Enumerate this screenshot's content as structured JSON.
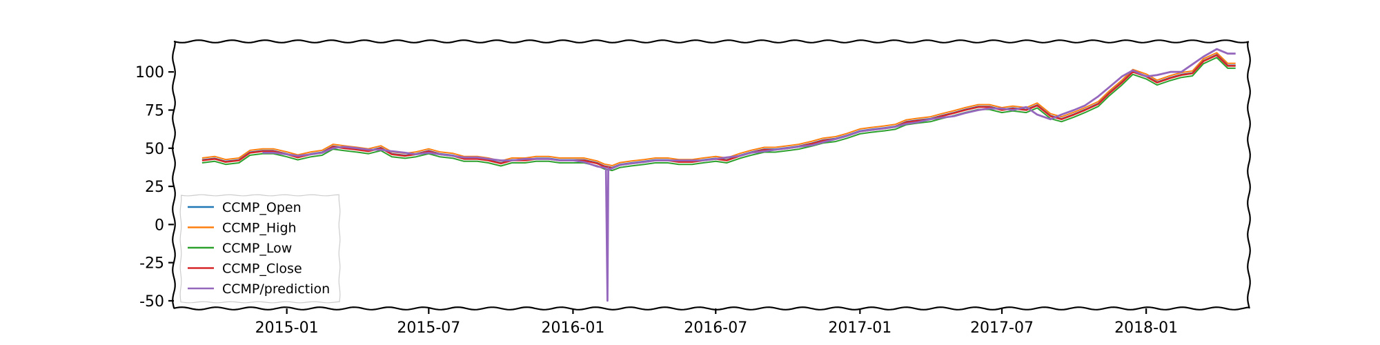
{
  "chart_data": {
    "type": "line",
    "title": "",
    "xlabel": "",
    "ylabel": "",
    "ylim": [
      -55,
      120
    ],
    "xlim": [
      "2014-08-10",
      "2018-05-12"
    ],
    "x_ticks": [
      {
        "date": "2015-01-01",
        "label": "2015-01"
      },
      {
        "date": "2015-07-01",
        "label": "2015-07"
      },
      {
        "date": "2016-01-01",
        "label": "2016-01"
      },
      {
        "date": "2016-07-01",
        "label": "2016-07"
      },
      {
        "date": "2017-01-01",
        "label": "2017-01"
      },
      {
        "date": "2017-07-01",
        "label": "2017-07"
      },
      {
        "date": "2018-01-01",
        "label": "2018-01"
      }
    ],
    "y_ticks": [
      {
        "value": 100,
        "label": "100"
      },
      {
        "value": 75,
        "label": "75"
      },
      {
        "value": 50,
        "label": "50"
      },
      {
        "value": 25,
        "label": "25"
      },
      {
        "value": 0,
        "label": "0"
      },
      {
        "value": -25,
        "label": "-25"
      },
      {
        "value": -50,
        "label": "-50"
      }
    ],
    "grid": false,
    "legend_position": "lower-left",
    "x_close": [
      "2014-09-15",
      "2014-10-01",
      "2014-10-15",
      "2014-11-01",
      "2014-11-15",
      "2014-12-01",
      "2014-12-15",
      "2015-01-01",
      "2015-01-15",
      "2015-02-01",
      "2015-02-15",
      "2015-03-01",
      "2015-03-15",
      "2015-04-01",
      "2015-04-15",
      "2015-05-01",
      "2015-05-15",
      "2015-06-01",
      "2015-06-15",
      "2015-07-01",
      "2015-07-15",
      "2015-08-01",
      "2015-08-15",
      "2015-09-01",
      "2015-09-15",
      "2015-10-01",
      "2015-10-15",
      "2015-11-01",
      "2015-11-15",
      "2015-12-01",
      "2015-12-15",
      "2016-01-01",
      "2016-01-15",
      "2016-02-01",
      "2016-02-10",
      "2016-02-20",
      "2016-03-01",
      "2016-03-15",
      "2016-04-01",
      "2016-04-15",
      "2016-05-01",
      "2016-05-15",
      "2016-06-01",
      "2016-06-15",
      "2016-07-01",
      "2016-07-15",
      "2016-08-01",
      "2016-08-15",
      "2016-09-01",
      "2016-09-15",
      "2016-10-01",
      "2016-10-15",
      "2016-11-01",
      "2016-11-15",
      "2016-12-01",
      "2016-12-15",
      "2017-01-01",
      "2017-01-15",
      "2017-02-01",
      "2017-02-15",
      "2017-03-01",
      "2017-03-15",
      "2017-04-01",
      "2017-04-15",
      "2017-05-01",
      "2017-05-15",
      "2017-06-01",
      "2017-06-15",
      "2017-07-01",
      "2017-07-15",
      "2017-08-01",
      "2017-08-15",
      "2017-09-01",
      "2017-09-15",
      "2017-10-01",
      "2017-10-15",
      "2017-11-01",
      "2017-11-15",
      "2017-12-01",
      "2017-12-15",
      "2018-01-01",
      "2018-01-15",
      "2018-02-01",
      "2018-02-15",
      "2018-03-01",
      "2018-03-15",
      "2018-04-01",
      "2018-04-15",
      "2018-04-25"
    ],
    "close_values": [
      42,
      43,
      41,
      42,
      47,
      48,
      48,
      46,
      44,
      46,
      47,
      51,
      50,
      49,
      48,
      50,
      46,
      45,
      46,
      48,
      46,
      45,
      43,
      43,
      42,
      40,
      42,
      42,
      43,
      43,
      42,
      42,
      42,
      40,
      38,
      37,
      39,
      40,
      41,
      42,
      42,
      41,
      41,
      42,
      43,
      42,
      45,
      47,
      49,
      49,
      50,
      51,
      53,
      55,
      56,
      58,
      61,
      62,
      63,
      64,
      67,
      68,
      69,
      71,
      73,
      75,
      77,
      77,
      75,
      76,
      75,
      78,
      71,
      69,
      72,
      75,
      79,
      86,
      93,
      100,
      97,
      93,
      96,
      98,
      99,
      107,
      111,
      104,
      104
    ],
    "x_pred": [
      "2014-12-01",
      "2014-12-15",
      "2015-01-01",
      "2015-01-15",
      "2015-02-01",
      "2015-02-15",
      "2015-03-01",
      "2015-03-15",
      "2015-04-01",
      "2015-04-15",
      "2015-05-01",
      "2015-05-15",
      "2015-06-01",
      "2015-06-15",
      "2015-07-01",
      "2015-07-15",
      "2015-08-01",
      "2015-08-15",
      "2015-09-01",
      "2015-09-15",
      "2015-10-01",
      "2015-10-15",
      "2015-11-01",
      "2015-11-15",
      "2015-12-01",
      "2015-12-15",
      "2016-01-01",
      "2016-01-15",
      "2016-02-01",
      "2016-02-12",
      "2016-02-14",
      "2016-02-15",
      "2016-02-16",
      "2016-03-01",
      "2016-03-15",
      "2016-04-01",
      "2016-04-15",
      "2016-05-01",
      "2016-05-15",
      "2016-06-01",
      "2016-06-15",
      "2016-07-01",
      "2016-07-15",
      "2016-08-01",
      "2016-08-15",
      "2016-09-01",
      "2016-09-15",
      "2016-10-01",
      "2016-10-15",
      "2016-11-01",
      "2016-11-15",
      "2016-12-01",
      "2016-12-15",
      "2017-01-01",
      "2017-01-15",
      "2017-02-01",
      "2017-02-15",
      "2017-03-01",
      "2017-03-15",
      "2017-04-01",
      "2017-04-15",
      "2017-05-01",
      "2017-05-15",
      "2017-06-01",
      "2017-06-15",
      "2017-07-01",
      "2017-07-15",
      "2017-08-01",
      "2017-08-15",
      "2017-09-01",
      "2017-09-15",
      "2017-10-01",
      "2017-10-15",
      "2017-11-01",
      "2017-11-15",
      "2017-12-01",
      "2017-12-15",
      "2018-01-01",
      "2018-01-15",
      "2018-02-01",
      "2018-02-15",
      "2018-03-01",
      "2018-03-15",
      "2018-04-01",
      "2018-04-15",
      "2018-04-25"
    ],
    "prediction_values": [
      47,
      47,
      46,
      45,
      46,
      47,
      50,
      51,
      50,
      49,
      49,
      48,
      47,
      46,
      47,
      46,
      45,
      44,
      44,
      43,
      42,
      42,
      43,
      43,
      43,
      42,
      42,
      41,
      38,
      37,
      -50,
      37,
      36,
      39,
      40,
      41,
      42,
      42,
      42,
      42,
      42,
      43,
      44,
      45,
      47,
      48,
      49,
      50,
      51,
      52,
      54,
      56,
      58,
      61,
      62,
      63,
      64,
      66,
      67,
      69,
      70,
      71,
      73,
      75,
      76,
      76,
      75,
      77,
      72,
      69,
      72,
      75,
      78,
      84,
      90,
      97,
      101,
      97,
      98,
      100,
      100,
      105,
      110,
      115,
      112,
      112
    ],
    "series": [
      {
        "name": "CCMP_Open",
        "color": "#1f77b4"
      },
      {
        "name": "CCMP_High",
        "color": "#ff7f0e"
      },
      {
        "name": "CCMP_Low",
        "color": "#2ca02c"
      },
      {
        "name": "CCMP_Close",
        "color": "#d62728"
      },
      {
        "name": "CCMP/prediction",
        "color": "#9467bd"
      }
    ]
  }
}
